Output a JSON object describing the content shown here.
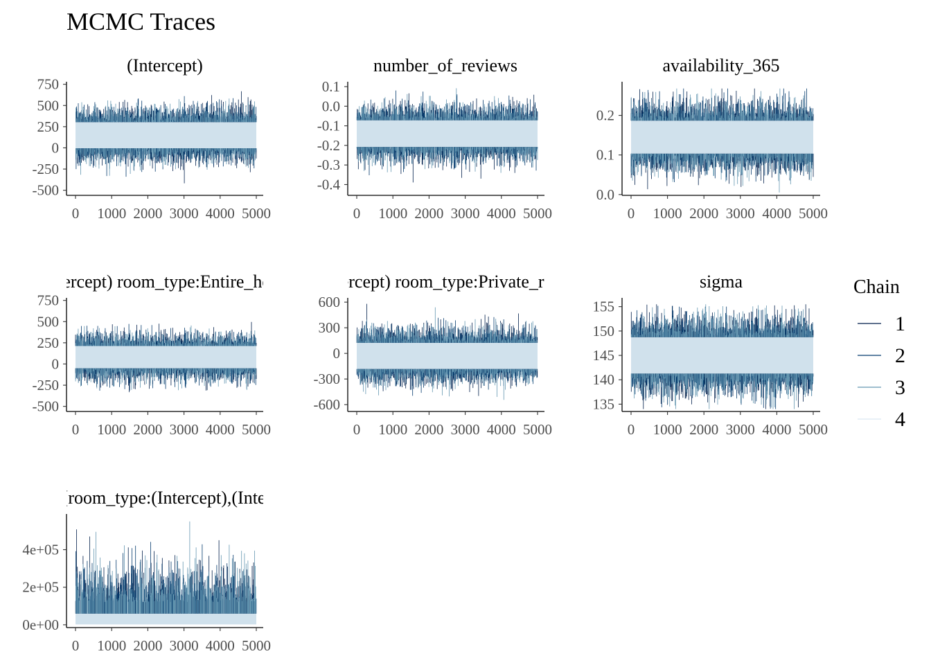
{
  "title": "MCMC Traces",
  "chart_data": {
    "type": "line",
    "title": "MCMC Traces",
    "legend": {
      "title": "Chain",
      "placement": "right",
      "entries": [
        "1",
        "2",
        "3",
        "4"
      ],
      "colors": [
        "#011f4b",
        "#03396c",
        "#6497b1",
        "#d9e6f2"
      ]
    },
    "band_color": "#d0e1ec",
    "iterations": [
      0,
      5000
    ],
    "panels": [
      {
        "label": "(Intercept)",
        "x_ticks": [
          "0",
          "1000",
          "2000",
          "3000",
          "4000",
          "5000"
        ],
        "y_ticks": [
          {
            "v": 750,
            "l": "750"
          },
          {
            "v": 500,
            "l": "500"
          },
          {
            "v": 250,
            "l": "250"
          },
          {
            "v": 0,
            "l": "0"
          },
          {
            "v": -250,
            "l": "-250"
          },
          {
            "v": -500,
            "l": "-500"
          }
        ],
        "ylim": [
          -560,
          780
        ],
        "center": 150,
        "spread": 140,
        "min": -520,
        "max": 700
      },
      {
        "label": "number_of_reviews",
        "x_ticks": [
          "0",
          "1000",
          "2000",
          "3000",
          "4000",
          "5000"
        ],
        "y_ticks": [
          {
            "v": 0.1,
            "l": "0.1"
          },
          {
            "v": 0.0,
            "l": "0.0"
          },
          {
            "v": -0.1,
            "l": "-0.1"
          },
          {
            "v": -0.2,
            "l": "-0.2"
          },
          {
            "v": -0.3,
            "l": "-0.3"
          },
          {
            "v": -0.4,
            "l": "-0.4"
          }
        ],
        "ylim": [
          -0.455,
          0.125
        ],
        "center": -0.14,
        "spread": 0.062,
        "min": -0.44,
        "max": 0.1
      },
      {
        "label": "availability_365",
        "x_ticks": [
          "0",
          "1000",
          "2000",
          "3000",
          "4000",
          "5000"
        ],
        "y_ticks": [
          {
            "v": 0.2,
            "l": "0.2"
          },
          {
            "v": 0.1,
            "l": "0.1"
          },
          {
            "v": 0.0,
            "l": "0.0"
          }
        ],
        "ylim": [
          -0.002,
          0.285
        ],
        "center": 0.145,
        "spread": 0.038,
        "min": 0.005,
        "max": 0.268
      },
      {
        "label": "(Intercept) room_type:Entire_home",
        "x_ticks": [
          "0",
          "1000",
          "2000",
          "3000",
          "4000",
          "5000"
        ],
        "y_ticks": [
          {
            "v": 750,
            "l": "750"
          },
          {
            "v": 500,
            "l": "500"
          },
          {
            "v": 250,
            "l": "250"
          },
          {
            "v": 0,
            "l": "0"
          },
          {
            "v": -250,
            "l": "-250"
          },
          {
            "v": -500,
            "l": "-500"
          }
        ],
        "ylim": [
          -560,
          780
        ],
        "center": 80,
        "spread": 120,
        "min": -510,
        "max": 690
      },
      {
        "label": "(Intercept) room_type:Private_room",
        "x_ticks": [
          "0",
          "1000",
          "2000",
          "3000",
          "4000",
          "5000"
        ],
        "y_ticks": [
          {
            "v": 600,
            "l": "600"
          },
          {
            "v": 300,
            "l": "300"
          },
          {
            "v": 0,
            "l": "0"
          },
          {
            "v": -300,
            "l": "-300"
          },
          {
            "v": -600,
            "l": "-600"
          }
        ],
        "ylim": [
          -680,
          650
        ],
        "center": -30,
        "spread": 140,
        "min": -620,
        "max": 580
      },
      {
        "label": "sigma",
        "x_ticks": [
          "0",
          "1000",
          "2000",
          "3000",
          "4000",
          "5000"
        ],
        "y_ticks": [
          {
            "v": 155,
            "l": "155"
          },
          {
            "v": 150,
            "l": "150"
          },
          {
            "v": 145,
            "l": "145"
          },
          {
            "v": 140,
            "l": "140"
          },
          {
            "v": 135,
            "l": "135"
          }
        ],
        "ylim": [
          133.5,
          156.8
        ],
        "center": 145,
        "spread": 3.4,
        "min": 134,
        "max": 155.5
      },
      {
        "label": "Sigma[room_type:(Intercept),(Intercept)]",
        "x_ticks": [
          "0",
          "1000",
          "2000",
          "3000",
          "4000",
          "5000"
        ],
        "y_ticks": [
          {
            "v": 400000,
            "l": "4e+05"
          },
          {
            "v": 200000,
            "l": "2e+05"
          },
          {
            "v": 0,
            "l": "0e+00"
          }
        ],
        "ylim": [
          -15000,
          590000
        ],
        "center": 120000,
        "spread": 60000,
        "min": 2000,
        "max": 550000,
        "skewed": true
      }
    ]
  }
}
